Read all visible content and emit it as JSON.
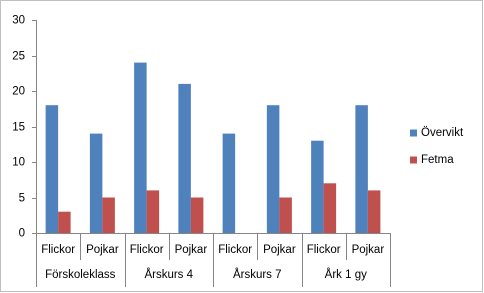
{
  "chart_data": {
    "type": "bar",
    "categories": [
      "Flickor",
      "Pojkar",
      "Flickor",
      "Pojkar",
      "Flickor",
      "Pojkar",
      "Flickor",
      "Pojkar"
    ],
    "groups": [
      "Förskoleklass",
      "Årskurs 4",
      "Årskurs 7",
      "Årk 1 gy"
    ],
    "series": [
      {
        "name": "Övervikt",
        "color": "#4f81bd",
        "values": [
          18,
          14,
          24,
          21,
          14,
          18,
          13,
          18
        ]
      },
      {
        "name": "Fetma",
        "color": "#c0504d",
        "values": [
          3,
          5,
          6,
          5,
          null,
          5,
          7,
          6
        ]
      }
    ],
    "ylim": [
      0,
      30
    ],
    "yticks": [
      0,
      5,
      10,
      15,
      20,
      25,
      30
    ],
    "grid": false,
    "legend": "right"
  }
}
